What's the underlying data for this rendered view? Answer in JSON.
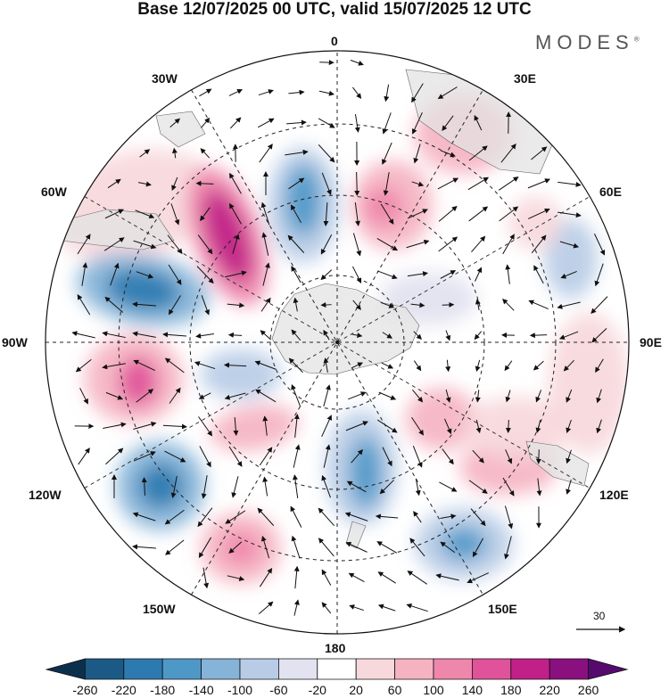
{
  "title": "Base 12/07/2025 00 UTC, valid 15/07/2025 12 UTC",
  "brand": "MODES",
  "brand_mark": "®",
  "longitude_labels": {
    "lon_0": "0",
    "lon_30e": "30E",
    "lon_60e": "60E",
    "lon_90e": "90E",
    "lon_120e": "120E",
    "lon_150e": "150E",
    "lon_180": "180",
    "lon_150w": "150W",
    "lon_120w": "120W",
    "lon_90w": "90W",
    "lon_60w": "60W",
    "lon_30w": "30W"
  },
  "reference_vector": {
    "value": "30"
  },
  "colorbar": {
    "ticks": [
      "-260",
      "-220",
      "-180",
      "-140",
      "-100",
      "-60",
      "-20",
      "20",
      "60",
      "100",
      "140",
      "180",
      "220",
      "260"
    ],
    "colors": [
      "#0c2f4c",
      "#1b5a86",
      "#2c7ab0",
      "#4e98c8",
      "#86b4d8",
      "#b8cce6",
      "#e2e2f0",
      "#ffffff",
      "#f7d8dc",
      "#f5b3c2",
      "#ef86ab",
      "#e0529a",
      "#c02088",
      "#8a1080",
      "#560a6e"
    ]
  }
}
